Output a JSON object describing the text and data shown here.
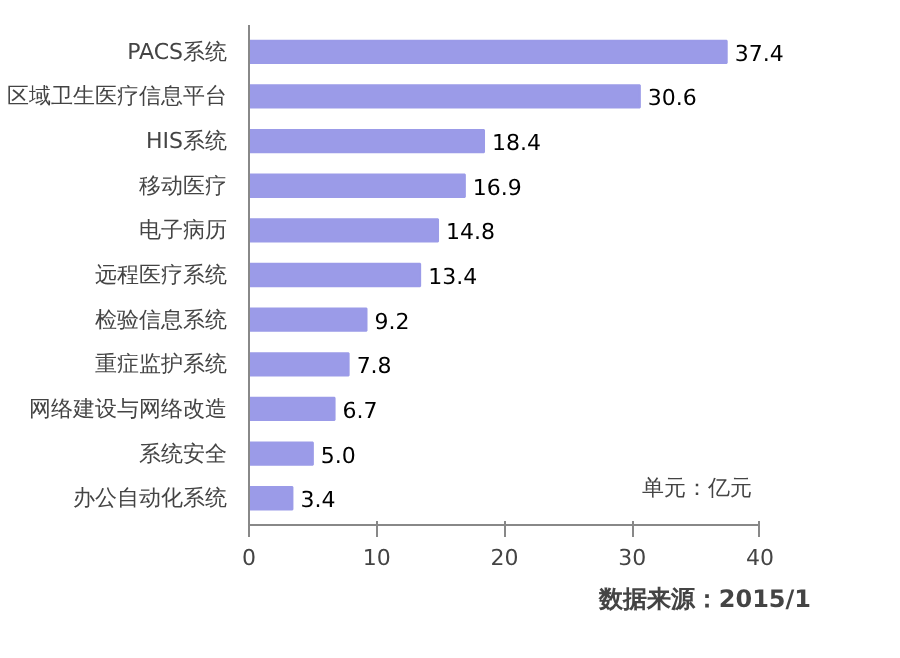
{
  "chart_data": {
    "type": "bar",
    "orientation": "horizontal",
    "categories": [
      "PACS系统",
      "区域卫生医疗信息平台",
      "HIS系统",
      "移动医疗",
      "电子病历",
      "远程医疗系统",
      "检验信息系统",
      "重症监护系统",
      "网络建设与网络改造",
      "系统安全",
      "办公自动化系统"
    ],
    "values": [
      37.4,
      30.6,
      18.4,
      16.9,
      14.8,
      13.4,
      9.2,
      7.8,
      6.7,
      5.0,
      3.4
    ],
    "value_labels": [
      "37.4",
      "30.6",
      "18.4",
      "16.9",
      "14.8",
      "13.4",
      "9.2",
      "7.8",
      "6.7",
      "5.0",
      "3.4"
    ],
    "color": "#9b9be8",
    "xlim": [
      0,
      40
    ],
    "xticks": [
      0,
      10,
      20,
      30,
      40
    ],
    "grid": false,
    "legend": false,
    "annotations": [
      "单元：亿元",
      "数据来源：2015/1"
    ]
  }
}
